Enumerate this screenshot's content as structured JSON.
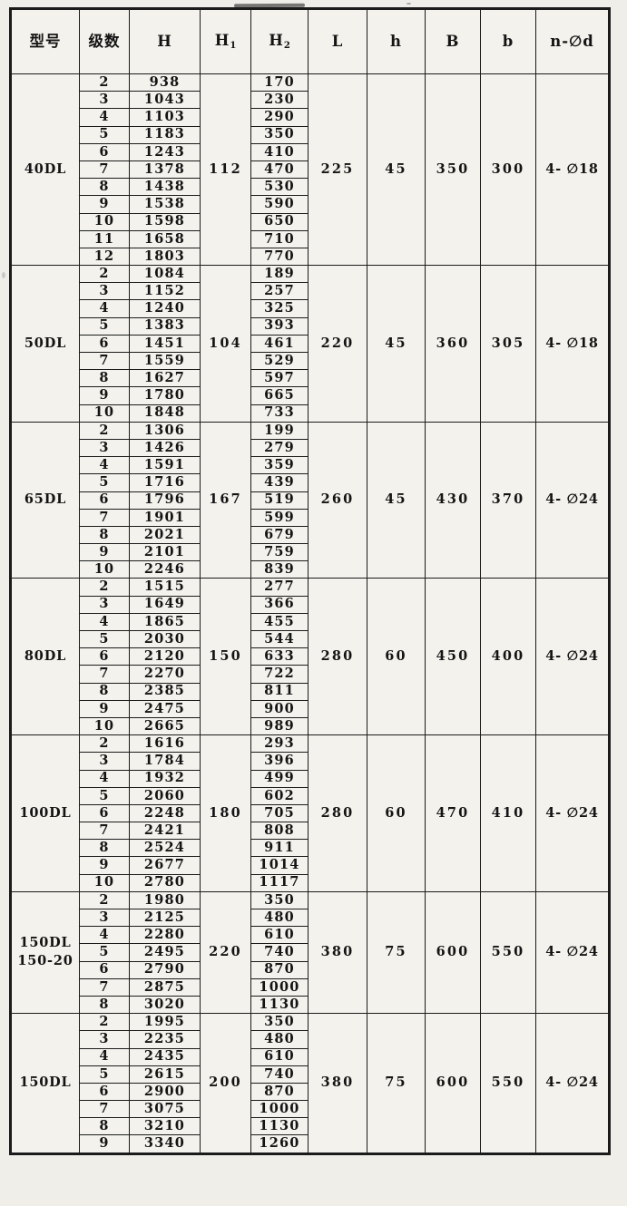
{
  "table": {
    "columns": [
      {
        "key": "model",
        "label": "型号"
      },
      {
        "key": "stages",
        "label": "级数"
      },
      {
        "key": "H",
        "label": "H"
      },
      {
        "key": "H1",
        "label": "H",
        "sub": "1"
      },
      {
        "key": "H2",
        "label": "H",
        "sub": "2"
      },
      {
        "key": "L",
        "label": "L"
      },
      {
        "key": "h",
        "label": "h"
      },
      {
        "key": "B",
        "label": "B"
      },
      {
        "key": "b",
        "label": "b"
      },
      {
        "key": "holes",
        "label": "n-∅d"
      }
    ],
    "groups": [
      {
        "model_lines": [
          "40DL"
        ],
        "H1": "112",
        "L": "225",
        "h": "45",
        "B": "350",
        "b": "300",
        "holes": "4- ∅18",
        "rows": [
          {
            "stage": "2",
            "H": "938",
            "H2": "170"
          },
          {
            "stage": "3",
            "H": "1043",
            "H2": "230"
          },
          {
            "stage": "4",
            "H": "1103",
            "H2": "290"
          },
          {
            "stage": "5",
            "H": "1183",
            "H2": "350"
          },
          {
            "stage": "6",
            "H": "1243",
            "H2": "410"
          },
          {
            "stage": "7",
            "H": "1378",
            "H2": "470"
          },
          {
            "stage": "8",
            "H": "1438",
            "H2": "530"
          },
          {
            "stage": "9",
            "H": "1538",
            "H2": "590"
          },
          {
            "stage": "10",
            "H": "1598",
            "H2": "650"
          },
          {
            "stage": "11",
            "H": "1658",
            "H2": "710"
          },
          {
            "stage": "12",
            "H": "1803",
            "H2": "770"
          }
        ]
      },
      {
        "model_lines": [
          "50DL"
        ],
        "H1": "104",
        "L": "220",
        "h": "45",
        "B": "360",
        "b": "305",
        "holes": "4- ∅18",
        "rows": [
          {
            "stage": "2",
            "H": "1084",
            "H2": "189"
          },
          {
            "stage": "3",
            "H": "1152",
            "H2": "257"
          },
          {
            "stage": "4",
            "H": "1240",
            "H2": "325"
          },
          {
            "stage": "5",
            "H": "1383",
            "H2": "393"
          },
          {
            "stage": "6",
            "H": "1451",
            "H2": "461"
          },
          {
            "stage": "7",
            "H": "1559",
            "H2": "529"
          },
          {
            "stage": "8",
            "H": "1627",
            "H2": "597"
          },
          {
            "stage": "9",
            "H": "1780",
            "H2": "665"
          },
          {
            "stage": "10",
            "H": "1848",
            "H2": "733"
          }
        ]
      },
      {
        "model_lines": [
          "65DL"
        ],
        "H1": "167",
        "L": "260",
        "h": "45",
        "B": "430",
        "b": "370",
        "holes": "4- ∅24",
        "rows": [
          {
            "stage": "2",
            "H": "1306",
            "H2": "199"
          },
          {
            "stage": "3",
            "H": "1426",
            "H2": "279"
          },
          {
            "stage": "4",
            "H": "1591",
            "H2": "359"
          },
          {
            "stage": "5",
            "H": "1716",
            "H2": "439"
          },
          {
            "stage": "6",
            "H": "1796",
            "H2": "519"
          },
          {
            "stage": "7",
            "H": "1901",
            "H2": "599"
          },
          {
            "stage": "8",
            "H": "2021",
            "H2": "679"
          },
          {
            "stage": "9",
            "H": "2101",
            "H2": "759"
          },
          {
            "stage": "10",
            "H": "2246",
            "H2": "839"
          }
        ]
      },
      {
        "model_lines": [
          "80DL"
        ],
        "H1": "150",
        "L": "280",
        "h": "60",
        "B": "450",
        "b": "400",
        "holes": "4- ∅24",
        "rows": [
          {
            "stage": "2",
            "H": "1515",
            "H2": "277"
          },
          {
            "stage": "3",
            "H": "1649",
            "H2": "366"
          },
          {
            "stage": "4",
            "H": "1865",
            "H2": "455"
          },
          {
            "stage": "5",
            "H": "2030",
            "H2": "544"
          },
          {
            "stage": "6",
            "H": "2120",
            "H2": "633"
          },
          {
            "stage": "7",
            "H": "2270",
            "H2": "722"
          },
          {
            "stage": "8",
            "H": "2385",
            "H2": "811"
          },
          {
            "stage": "9",
            "H": "2475",
            "H2": "900"
          },
          {
            "stage": "10",
            "H": "2665",
            "H2": "989"
          }
        ]
      },
      {
        "model_lines": [
          "100DL"
        ],
        "H1": "180",
        "L": "280",
        "h": "60",
        "B": "470",
        "b": "410",
        "holes": "4- ∅24",
        "rows": [
          {
            "stage": "2",
            "H": "1616",
            "H2": "293"
          },
          {
            "stage": "3",
            "H": "1784",
            "H2": "396"
          },
          {
            "stage": "4",
            "H": "1932",
            "H2": "499"
          },
          {
            "stage": "5",
            "H": "2060",
            "H2": "602"
          },
          {
            "stage": "6",
            "H": "2248",
            "H2": "705"
          },
          {
            "stage": "7",
            "H": "2421",
            "H2": "808"
          },
          {
            "stage": "8",
            "H": "2524",
            "H2": "911"
          },
          {
            "stage": "9",
            "H": "2677",
            "H2": "1014"
          },
          {
            "stage": "10",
            "H": "2780",
            "H2": "1117"
          }
        ]
      },
      {
        "model_lines": [
          "150DL",
          "150-20"
        ],
        "H1": "220",
        "L": "380",
        "h": "75",
        "B": "600",
        "b": "550",
        "holes": "4- ∅24",
        "rows": [
          {
            "stage": "2",
            "H": "1980",
            "H2": "350"
          },
          {
            "stage": "3",
            "H": "2125",
            "H2": "480"
          },
          {
            "stage": "4",
            "H": "2280",
            "H2": "610"
          },
          {
            "stage": "5",
            "H": "2495",
            "H2": "740"
          },
          {
            "stage": "6",
            "H": "2790",
            "H2": "870"
          },
          {
            "stage": "7",
            "H": "2875",
            "H2": "1000"
          },
          {
            "stage": "8",
            "H": "3020",
            "H2": "1130"
          }
        ]
      },
      {
        "model_lines": [
          "150DL"
        ],
        "H1": "200",
        "L": "380",
        "h": "75",
        "B": "600",
        "b": "550",
        "holes": "4- ∅24",
        "rows": [
          {
            "stage": "2",
            "H": "1995",
            "H2": "350"
          },
          {
            "stage": "3",
            "H": "2235",
            "H2": "480"
          },
          {
            "stage": "4",
            "H": "2435",
            "H2": "610"
          },
          {
            "stage": "5",
            "H": "2615",
            "H2": "740"
          },
          {
            "stage": "6",
            "H": "2900",
            "H2": "870"
          },
          {
            "stage": "7",
            "H": "3075",
            "H2": "1000"
          },
          {
            "stage": "8",
            "H": "3210",
            "H2": "1130"
          },
          {
            "stage": "9",
            "H": "3340",
            "H2": "1260"
          }
        ]
      }
    ]
  },
  "colors": {
    "paper": "#efeee9",
    "cell_fill": "#f3f2ed",
    "line": "#1b1b1b",
    "text": "#141414"
  }
}
